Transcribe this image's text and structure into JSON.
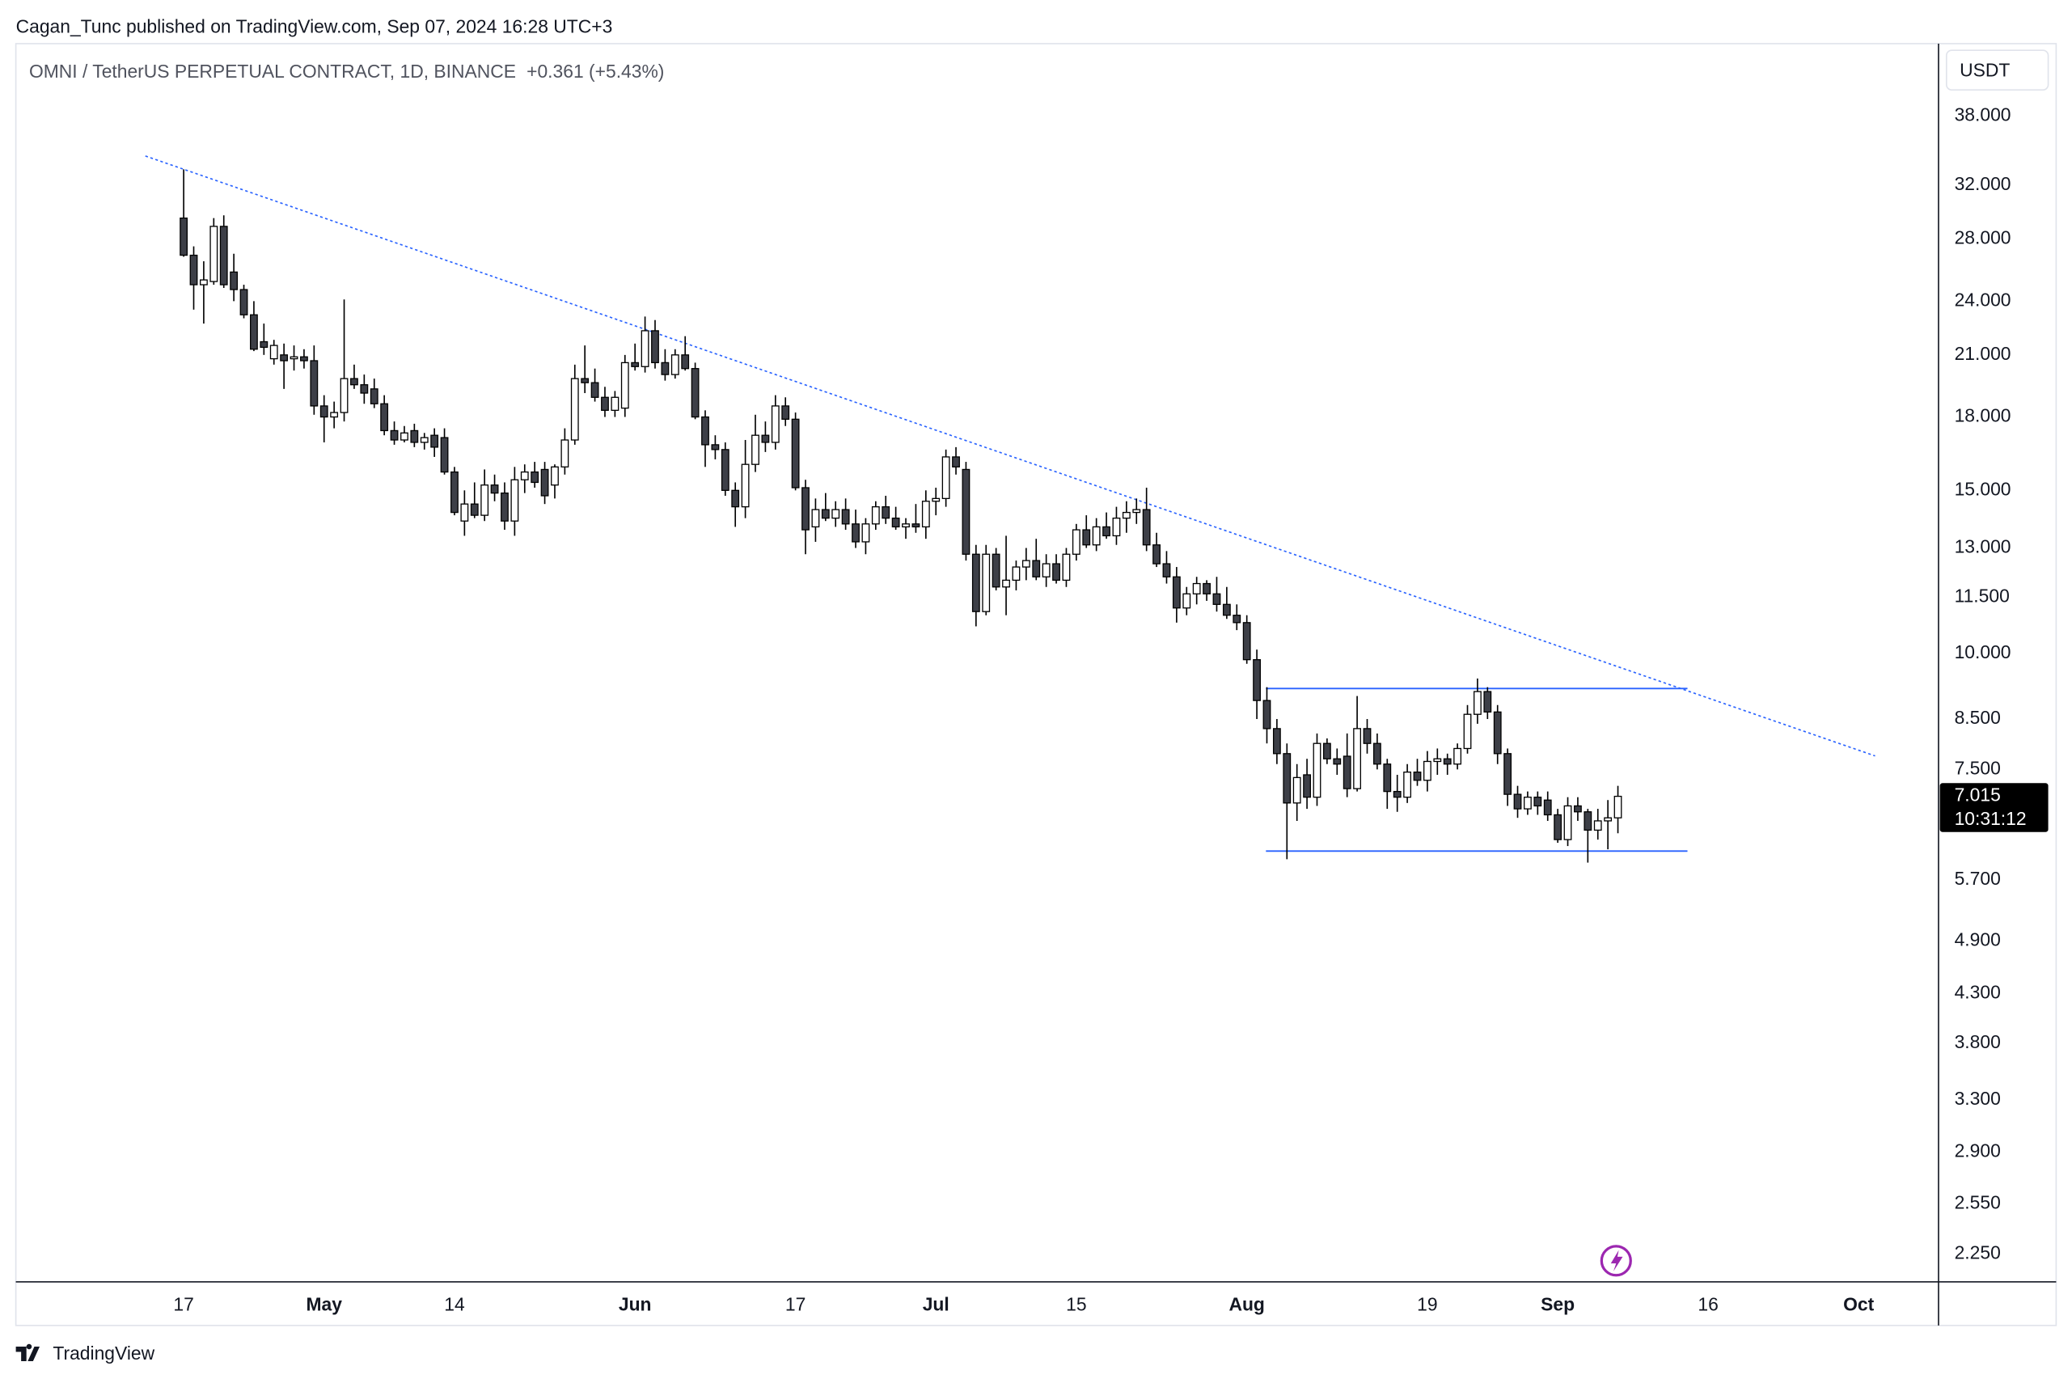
{
  "chart_data": {
    "type": "candlestick",
    "attribution": "Cagan_Tunc published on TradingView.com, Sep 07, 2024 16:28 UTC+3",
    "title": "OMNI / TetherUS PERPETUAL CONTRACT, 1D, BINANCE",
    "subtitle": "+0.361 (+5.43%)",
    "currency": "USDT",
    "countdown": "10:31:12",
    "brand": "TradingView",
    "log_scale": true,
    "grid": false,
    "colors": {
      "up": "#ffffff",
      "down": "#3d3f47",
      "outline": "#000000",
      "drawing": "#2962ff"
    },
    "ylim": [
      2.1,
      45.5
    ],
    "yticks": [
      {
        "value": 38,
        "label": "38.000"
      },
      {
        "value": 32,
        "label": "32.000"
      },
      {
        "value": 28,
        "label": "28.000"
      },
      {
        "value": 24,
        "label": "24.000"
      },
      {
        "value": 21,
        "label": "21.000"
      },
      {
        "value": 18,
        "label": "18.000"
      },
      {
        "value": 15,
        "label": "15.000"
      },
      {
        "value": 13,
        "label": "13.000"
      },
      {
        "value": 11.5,
        "label": "11.500"
      },
      {
        "value": 10,
        "label": "10.000"
      },
      {
        "value": 8.5,
        "label": "8.500"
      },
      {
        "value": 7.5,
        "label": "7.500"
      },
      {
        "value": 5.7,
        "label": "5.700"
      },
      {
        "value": 4.9,
        "label": "4.900"
      },
      {
        "value": 4.3,
        "label": "4.300"
      },
      {
        "value": 3.8,
        "label": "3.800"
      },
      {
        "value": 3.3,
        "label": "3.300"
      },
      {
        "value": 2.9,
        "label": "2.900"
      },
      {
        "value": 2.55,
        "label": "2.550"
      },
      {
        "value": 2.25,
        "label": "2.250"
      }
    ],
    "categories": [
      "17",
      null,
      null,
      null,
      null,
      null,
      null,
      null,
      null,
      null,
      null,
      null,
      null,
      null,
      "May",
      null,
      null,
      null,
      null,
      null,
      null,
      null,
      null,
      null,
      null,
      null,
      null,
      "14",
      null,
      null,
      null,
      null,
      null,
      null,
      null,
      null,
      null,
      null,
      null,
      null,
      null,
      null,
      null,
      null,
      null,
      "Jun",
      null,
      null,
      null,
      null,
      null,
      null,
      null,
      null,
      null,
      null,
      null,
      null,
      null,
      null,
      null,
      "17",
      null,
      null,
      null,
      null,
      null,
      null,
      null,
      null,
      null,
      null,
      null,
      null,
      null,
      "Jul",
      null,
      null,
      null,
      null,
      null,
      null,
      null,
      null,
      null,
      null,
      null,
      null,
      null,
      "15",
      null,
      null,
      null,
      null,
      null,
      null,
      null,
      null,
      null,
      null,
      null,
      null,
      null,
      null,
      null,
      null,
      "Aug",
      null,
      null,
      null,
      null,
      null,
      null,
      null,
      null,
      null,
      null,
      null,
      null,
      null,
      null,
      null,
      null,
      null,
      "19",
      null,
      null,
      null,
      null,
      null,
      null,
      null,
      null,
      null,
      null,
      null,
      null,
      "Sep",
      null,
      null,
      null,
      null,
      null,
      null,
      null,
      null,
      null,
      null,
      null,
      null,
      null,
      null,
      "16",
      null,
      null,
      null,
      null,
      null,
      null,
      null,
      null,
      null,
      null,
      null,
      null,
      null,
      null,
      "Oct"
    ],
    "open": [
      29.5,
      26.9,
      25.0,
      25.2,
      28.9,
      25.8,
      24.7,
      23.2,
      21.7,
      20.8,
      21,
      20.8,
      20.9,
      20.7,
      18.5,
      18,
      18.2,
      19.8,
      19.5,
      19.3,
      18.6,
      17.4,
      17.0,
      17.4,
      16.9,
      17.2,
      17.1,
      15.7,
      13.9,
      14.5,
      14.1,
      15.2,
      14.9,
      13.9,
      15.4,
      15.7,
      15.8,
      15.2,
      15.9,
      17,
      19.8,
      19.6,
      18.9,
      18.3,
      18.4,
      20.6,
      20.4,
      22.3,
      20.6,
      20.0,
      21.0,
      20.3,
      18,
      16.8,
      16.6,
      15,
      14.4,
      16,
      17.2,
      16.9,
      18.5,
      17.9,
      15.1,
      13.7,
      14.3,
      14.0,
      14.3,
      13.8,
      13.2,
      13.8,
      14.4,
      14.0,
      13.7,
      13.8,
      13.7,
      14.6,
      14.7,
      16.3,
      15.8,
      12.8,
      11.1,
      12.8,
      11.8,
      12.0,
      12.4,
      12.6,
      12.1,
      12.5,
      12.0,
      12.8,
      13.6,
      13.1,
      13.7,
      13.4,
      14.0,
      14.2,
      14.3,
      13.1,
      12.5,
      12.1,
      11.2,
      11.6,
      11.9,
      11.6,
      11.3,
      11.0,
      10.8,
      9.85,
      8.9,
      8.3,
      7.8,
      6.9,
      7.4,
      7.0,
      8.0,
      7.7,
      7.75,
      7.15,
      8.3,
      8.0,
      7.6,
      7.1,
      7.0,
      7.45,
      7.3,
      7.65,
      7.7,
      7.6,
      7.9,
      8.6,
      9.1,
      8.65,
      7.8,
      7.05,
      6.8,
      7.0,
      6.95,
      6.7,
      6.3,
      6.85,
      6.75,
      6.45,
      6.6,
      6.65,
      null,
      null,
      null,
      null,
      null,
      null,
      null,
      null,
      null,
      null,
      null,
      null,
      null,
      null,
      null,
      null,
      null,
      null,
      null,
      null,
      null,
      null,
      null,
      null
    ],
    "high": [
      33.3,
      27.5,
      26.5,
      29.5,
      29.7,
      27,
      25,
      24,
      22.7,
      21.8,
      21.6,
      21.5,
      21.3,
      21.5,
      19,
      18.7,
      24.1,
      20.5,
      20,
      19.8,
      19,
      17.8,
      17.6,
      17.7,
      17.3,
      17.5,
      17.5,
      15.9,
      15,
      15.3,
      15.8,
      15.6,
      15.3,
      15.9,
      16,
      16.1,
      16.1,
      16,
      17.5,
      20.5,
      21.5,
      20.3,
      19.4,
      19.2,
      21,
      21.6,
      23.1,
      22.9,
      21.3,
      21.3,
      22,
      20.6,
      18.3,
      17.2,
      16.9,
      15.3,
      17,
      18.1,
      17.8,
      19,
      18.9,
      18.2,
      15.4,
      14.7,
      14.9,
      14.6,
      14.7,
      14.3,
      14,
      14.6,
      14.8,
      14.4,
      14,
      14.5,
      15,
      15.1,
      16.6,
      16.7,
      16.1,
      13.1,
      13.1,
      13,
      13.4,
      12.6,
      13,
      13.3,
      12.8,
      12.8,
      13,
      13.8,
      14.1,
      14,
      14.2,
      14.4,
      14.6,
      14.7,
      15.1,
      13.5,
      12.9,
      12.4,
      11.8,
      12.1,
      12,
      12.1,
      11.8,
      11.3,
      11,
      10.1,
      9.2,
      8.5,
      8,
      7.6,
      7.7,
      8.2,
      8.1,
      7.9,
      8.2,
      9,
      8.5,
      8.2,
      7.7,
      7.4,
      7.6,
      7.7,
      7.85,
      7.9,
      7.8,
      8,
      8.8,
      9.4,
      9.2,
      8.8,
      7.9,
      7.2,
      7.1,
      7.1,
      7.1,
      6.8,
      7,
      7,
      6.8,
      6.8,
      6.95,
      7.2,
      null,
      null,
      null,
      null,
      null,
      null,
      null,
      null,
      null,
      null,
      null,
      null,
      null,
      null,
      null,
      null,
      null,
      null,
      null,
      null,
      null,
      null,
      null,
      null
    ],
    "low": [
      26.8,
      23.5,
      22.7,
      25,
      24.8,
      24,
      23,
      21.2,
      21,
      20.5,
      19.3,
      20.2,
      20.3,
      18.1,
      16.9,
      17.5,
      17.8,
      19.3,
      18.6,
      18.4,
      17.2,
      16.8,
      16.9,
      16.7,
      16.6,
      16.3,
      15.6,
      14.1,
      13.4,
      14,
      13.9,
      14.6,
      13.6,
      13.4,
      14.9,
      15.1,
      14.5,
      14.7,
      15.6,
      16.8,
      19.1,
      18.7,
      18,
      18,
      18,
      20.2,
      20.1,
      20.3,
      19.7,
      19.8,
      20.2,
      17.9,
      15.9,
      16.2,
      14.8,
      13.7,
      14,
      15.7,
      16.5,
      16.6,
      17.6,
      15,
      12.8,
      13.2,
      13.9,
      13.7,
      13.6,
      13,
      12.8,
      13.6,
      13.8,
      13.6,
      13.3,
      13.5,
      13.3,
      14.1,
      14.4,
      15.6,
      12.6,
      10.7,
      11,
      11.7,
      11,
      11.7,
      12,
      12,
      11.8,
      11.9,
      11.8,
      12.6,
      13,
      12.9,
      13.3,
      13.1,
      13.5,
      13.8,
      12.9,
      12.4,
      11.9,
      10.8,
      11,
      11.3,
      11.4,
      11.1,
      10.9,
      10.6,
      9.75,
      8.5,
      8,
      7.6,
      6,
      6.6,
      6.8,
      6.85,
      7.6,
      7.4,
      7,
      7.1,
      7.8,
      7.5,
      6.8,
      6.75,
      6.9,
      7.2,
      7.1,
      7.4,
      7.4,
      7.5,
      7.8,
      8.4,
      8.5,
      7.6,
      6.85,
      6.65,
      6.7,
      6.7,
      6.6,
      6.25,
      6.2,
      6.6,
      5.95,
      6.3,
      6.15,
      6.4,
      null,
      null,
      null,
      null,
      null,
      null,
      null,
      null,
      null,
      null,
      null,
      null,
      null,
      null,
      null,
      null,
      null,
      null,
      null,
      null,
      null,
      null,
      null,
      null
    ],
    "close": [
      26.9,
      25.0,
      25.3,
      28.9,
      25.0,
      24.7,
      23.2,
      21.3,
      21.4,
      21.5,
      20.7,
      20.9,
      20.7,
      18.5,
      18.0,
      18.2,
      19.8,
      19.5,
      19.1,
      18.6,
      17.4,
      17.0,
      17.3,
      16.9,
      17.1,
      16.7,
      15.7,
      14.2,
      14.5,
      14.1,
      15.2,
      14.9,
      13.9,
      15.4,
      15.7,
      15.3,
      14.8,
      15.9,
      17.0,
      19.8,
      19.6,
      18.9,
      18.3,
      18.9,
      20.6,
      20.4,
      22.3,
      20.6,
      20.0,
      21.0,
      20.3,
      18.0,
      16.8,
      16.6,
      15.0,
      14.4,
      16.0,
      17.2,
      16.9,
      18.5,
      17.9,
      15.1,
      13.6,
      14.3,
      14.0,
      14.3,
      13.8,
      13.2,
      13.8,
      14.4,
      14.0,
      13.7,
      13.8,
      13.7,
      14.6,
      14.7,
      16.3,
      15.9,
      12.8,
      11.1,
      12.8,
      11.8,
      12.0,
      12.4,
      12.6,
      12.1,
      12.5,
      12.0,
      12.8,
      13.6,
      13.1,
      13.7,
      13.4,
      14.0,
      14.2,
      14.3,
      13.1,
      12.5,
      12.1,
      11.2,
      11.6,
      11.9,
      11.6,
      11.3,
      11.0,
      10.8,
      9.85,
      8.9,
      8.3,
      7.8,
      6.9,
      7.35,
      7.0,
      8.0,
      7.7,
      7.6,
      7.15,
      8.3,
      8.0,
      7.6,
      7.1,
      7.0,
      7.45,
      7.3,
      7.65,
      7.7,
      7.6,
      7.9,
      8.6,
      9.1,
      8.65,
      7.8,
      7.05,
      6.8,
      7.0,
      6.85,
      6.7,
      6.3,
      6.85,
      6.75,
      6.45,
      6.6,
      6.65,
      7.015,
      null,
      null,
      null,
      null,
      null,
      null,
      null,
      null,
      null,
      null,
      null,
      null,
      null,
      null,
      null,
      null,
      null,
      null,
      null,
      null,
      null,
      null,
      null,
      null
    ]
  }
}
